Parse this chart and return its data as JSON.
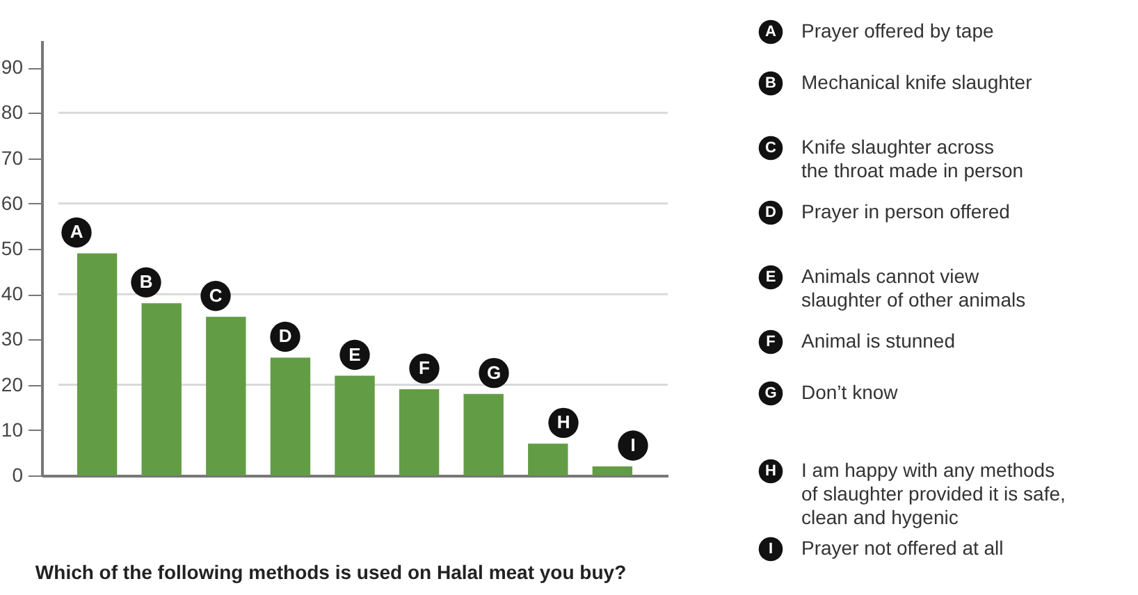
{
  "chart_data": {
    "type": "bar",
    "title": "Which of the following methods is used on Halal meat you buy?",
    "categories": [
      "A",
      "B",
      "C",
      "D",
      "E",
      "F",
      "G",
      "H",
      "I"
    ],
    "values": [
      49,
      38,
      35,
      26,
      22,
      19,
      18,
      7,
      2
    ],
    "color": "#629d45",
    "ylim": [
      0,
      96
    ],
    "yticks": [
      0,
      10,
      20,
      30,
      40,
      50,
      60,
      70,
      80,
      90
    ],
    "grid": "y",
    "annotations": [
      "Prayer offered by tape",
      "Mechanical knife slaughter",
      "Knife slaughter across\nthe throat made in person",
      "Prayer in person offered",
      "Animals cannot view\nslaughter of other animals",
      "Animal is stunned",
      "Don’t know",
      "I am happy with any methods\nof slaughter provided it is safe,\nclean and hygenic",
      "Prayer not offered at all"
    ]
  }
}
